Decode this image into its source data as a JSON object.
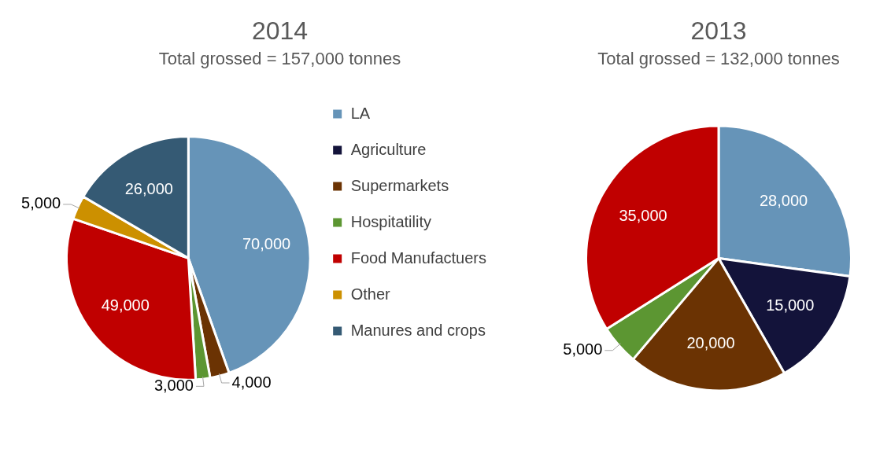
{
  "chart_data": [
    {
      "type": "pie",
      "title": "2014",
      "subtitle": "Total grossed = 157,000 tonnes",
      "categories": [
        "LA",
        "Agriculture",
        "Supermarkets",
        "Hospitatility",
        "Food Manufactuers",
        "Other",
        "Manures and crops"
      ],
      "values": [
        70000,
        null,
        4000,
        3000,
        49000,
        5000,
        26000
      ],
      "value_labels": [
        "70,000",
        null,
        "4,000",
        "3,000",
        "49,000",
        "5,000",
        "26,000"
      ],
      "colors": [
        "#6694b8",
        "#13133a",
        "#6b3303",
        "#5c9632",
        "#c00000",
        "#cc9000",
        "#355a74"
      ],
      "data_labels": true,
      "legend": "right"
    },
    {
      "type": "pie",
      "title": "2013",
      "subtitle": "Total grossed = 132,000 tonnes",
      "categories": [
        null,
        null,
        null,
        null,
        null
      ],
      "values": [
        28000,
        15000,
        20000,
        5000,
        35000
      ],
      "value_labels": [
        "28,000",
        "15,000",
        "20,000",
        "5,000",
        "35,000"
      ],
      "colors": [
        "#6694b8",
        "#13133a",
        "#6b3303",
        "#5c9632",
        "#c00000"
      ],
      "data_labels": true
    }
  ]
}
